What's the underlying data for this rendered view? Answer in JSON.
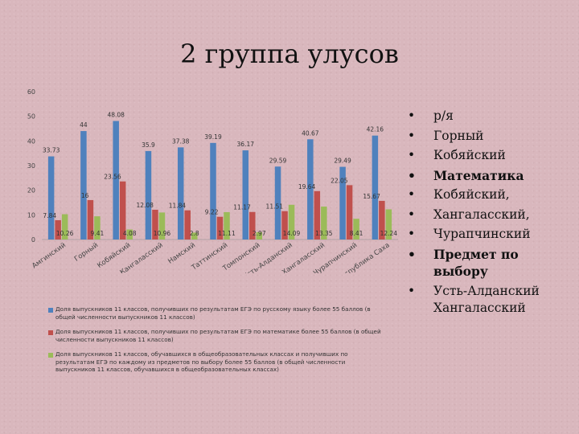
{
  "title": "2 группа улусов",
  "chart_data": {
    "type": "bar",
    "categories": [
      "Амгинский",
      "Горный",
      "Кобяйский",
      "Мегино-Кангаласский",
      "Намский",
      "Таттинский",
      "Томпонский",
      "Усть-Алданский",
      "Хангаласский",
      "Чурапчинский",
      "Республика Саха"
    ],
    "ylim": [
      0,
      60
    ],
    "yticks": [
      0,
      10,
      20,
      30,
      40,
      50,
      60
    ],
    "grid": false,
    "legend_position": "bottom",
    "series": [
      {
        "name": "Доля выпускников 11 классов, получивших по результатам ЕГЭ по русскому языку более 55 баллов (в общей численности выпускников 11 классов)",
        "color": "#4f81bd",
        "values": [
          33.73,
          44,
          48.08,
          35.9,
          37.38,
          39.19,
          36.17,
          29.59,
          40.67,
          29.49,
          42.16
        ]
      },
      {
        "name": "Доля выпускников 11 классов, получивших по результатам ЕГЭ по математике более 55 баллов (в общей численности выпускников 11 классов)",
        "color": "#c0504d",
        "values": [
          7.84,
          16,
          23.56,
          12.08,
          11.84,
          9.22,
          11.17,
          11.51,
          19.64,
          22.05,
          15.67
        ]
      },
      {
        "name": "Доля выпускников 11 классов, обучавшихся в общеобразовательных классах и получивших по результатам ЕГЭ по каждому из предметов по выбору более 55 баллов (в общей численности выпускников 11 классов, обучавшихся в общеобразовательных классах)",
        "color": "#9bbb59",
        "values": [
          10.26,
          9.41,
          4.08,
          10.96,
          2.8,
          11.11,
          2.97,
          14.09,
          13.35,
          8.41,
          12.24
        ]
      }
    ],
    "data_labels": [
      [
        "33.73",
        "44",
        "48.08",
        "35.9",
        "37.38",
        "39.19",
        "36.17",
        "29.59",
        "40.67",
        "29.49",
        "42.16"
      ],
      [
        "7.84",
        "16",
        "23.56",
        "12.08",
        "11.84",
        "9.22",
        "11.17",
        "11.51",
        "19.64",
        "22.05",
        "15.67"
      ],
      [
        "10.26",
        "9.41",
        "4.08",
        "10.96",
        "2.8",
        "11.11",
        "2.97",
        "14.09",
        "13.35",
        "8.41",
        "12.24"
      ]
    ]
  },
  "bullets": [
    {
      "text": "р/я",
      "bold": false
    },
    {
      "text": "Горный",
      "bold": false
    },
    {
      "text": "Кобяйский",
      "bold": false
    },
    {
      "text": "Математика",
      "bold": true
    },
    {
      "text": "Кобяйский,",
      "bold": false
    },
    {
      "text": "Хангаласский,",
      "bold": false
    },
    {
      "text": "Чурапчинский",
      "bold": false
    },
    {
      "text": "Предмет по выбору",
      "bold": true
    },
    {
      "text": "Усть-Алданский Хангаласский",
      "bold": false
    }
  ]
}
